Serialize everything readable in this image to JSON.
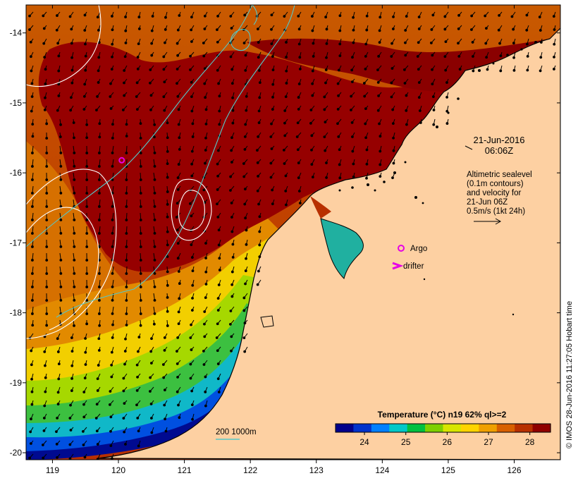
{
  "map": {
    "lon_range": [
      118.6,
      126.7
    ],
    "lat_range": [
      -20.1,
      -13.6
    ],
    "x_ticks": [
      "119",
      "120",
      "121",
      "122",
      "123",
      "124",
      "125",
      "126"
    ],
    "y_ticks": [
      "-14",
      "-15",
      "-16",
      "-17",
      "-18",
      "-19",
      "-20"
    ],
    "land_color": "#fdd0a2",
    "coast_color": "#000000",
    "contour_color": "#ffffff",
    "isobath_color": "#55c8c8"
  },
  "date_block": {
    "date": "21-Jun-2016",
    "time": "06:06Z"
  },
  "altimetry_note": {
    "line1": "Altimetric sealevel",
    "line2": "(0.1m contours)",
    "line3": "and velocity for",
    "line4": "21-Jun 06Z",
    "scale": "0.5m/s (1kt 24h)"
  },
  "legend": {
    "argo_label": "Argo",
    "drifter_label": "drifter",
    "argo_color": "#e600e6",
    "drifter_color": "#e600e6"
  },
  "isobath_legend": {
    "label": "200  1000m"
  },
  "colorbar": {
    "title": "Temperature (°C) n19 62% ql>=2",
    "ticks": [
      "24",
      "25",
      "26",
      "27",
      "28"
    ],
    "range": [
      23.3,
      28.5
    ],
    "colors": [
      "#00008b",
      "#0033cc",
      "#0080ff",
      "#00c8c8",
      "#00c040",
      "#7fd000",
      "#d8e600",
      "#ffd400",
      "#f0a000",
      "#d86000",
      "#b83000",
      "#900000"
    ]
  },
  "credit": "© IMOS 28-Jun-2016 11:27:05 Hobart time",
  "argo_float": {
    "lon": 120.05,
    "lat": -15.82
  }
}
